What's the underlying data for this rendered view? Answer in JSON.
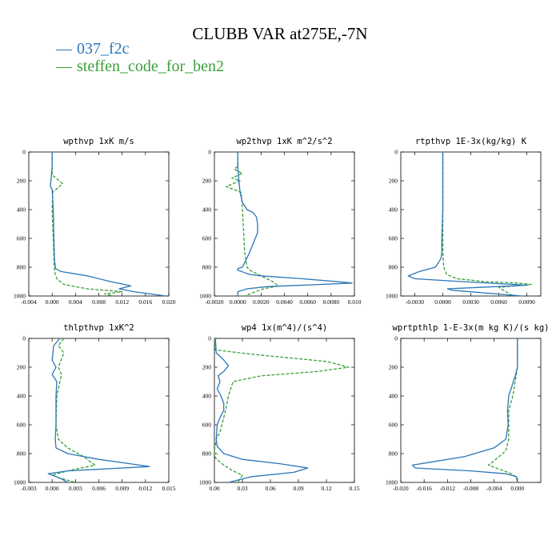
{
  "figure": {
    "title": "CLUBB VAR at275E,-7N",
    "legend": [
      {
        "label": "037_f2c",
        "color": "#2a76b8",
        "dash": "solid"
      },
      {
        "label": "steffen_code_for_ben2",
        "color": "#3a9e3a",
        "dash": "dashed"
      }
    ]
  },
  "chart_data": [
    {
      "type": "line",
      "title": "wpthvp  1xK m/s",
      "xlim": [
        -0.004,
        0.02
      ],
      "ylim": [
        0,
        1000
      ],
      "y_inverted": true,
      "xticks": [
        "-0.004",
        "0.000",
        "0.004",
        "0.008",
        "0.012",
        "0.016",
        "0.020"
      ],
      "yticks": [
        "0",
        "200",
        "400",
        "600",
        "800",
        "1000"
      ],
      "series": [
        {
          "name": "037_f2c",
          "color": "#2a76b8",
          "dash": "solid",
          "x": [
            0.0,
            0.0,
            -0.0001,
            -0.0003,
            0.0,
            0.0002,
            0.0003,
            0.0004,
            0.0006,
            0.0015,
            0.006,
            0.01,
            0.0135,
            0.0115,
            0.014,
            0.0195
          ],
          "y": [
            0,
            100,
            150,
            240,
            260,
            400,
            600,
            750,
            810,
            830,
            860,
            900,
            930,
            950,
            970,
            1000
          ]
        },
        {
          "name": "steffen_code_for_ben2",
          "color": "#3a9e3a",
          "dash": "dashed",
          "x": [
            0.0,
            0.0,
            0.0018,
            0.0001,
            0.0,
            0.0002,
            0.0003,
            0.0004,
            0.0008,
            0.002,
            0.006,
            0.012,
            0.009,
            0.0105
          ],
          "y": [
            0,
            160,
            220,
            280,
            400,
            600,
            750,
            830,
            880,
            920,
            950,
            970,
            985,
            1000
          ]
        }
      ]
    },
    {
      "type": "line",
      "title": "wp2thvp  1xK m^2/s^2",
      "xlim": [
        -0.002,
        0.01
      ],
      "ylim": [
        0,
        1000
      ],
      "y_inverted": true,
      "xticks": [
        "-0.0020",
        "0.0000",
        "0.0020",
        "0.0040",
        "0.0060",
        "0.0080",
        "0.010"
      ],
      "yticks": [
        "0",
        "200",
        "400",
        "600",
        "800",
        "1000"
      ],
      "series": [
        {
          "name": "037_f2c",
          "color": "#2a76b8",
          "dash": "solid",
          "x": [
            0.0,
            0.0,
            0.0001,
            0.0002,
            0.0004,
            0.0008,
            0.0013,
            0.0016,
            0.0017,
            0.0017,
            0.0014,
            0.001,
            0.0004,
            0.0,
            0.0,
            0.0005,
            0.001,
            0.002,
            0.0055,
            0.0085,
            0.0098,
            0.007,
            0.0025,
            0.0008,
            0.0,
            0.0
          ],
          "y": [
            0,
            100,
            200,
            280,
            350,
            400,
            420,
            450,
            500,
            560,
            620,
            700,
            800,
            810,
            820,
            835,
            850,
            860,
            880,
            900,
            910,
            920,
            935,
            950,
            970,
            1000
          ]
        },
        {
          "name": "steffen_code_for_ben2",
          "color": "#3a9e3a",
          "dash": "dashed",
          "x": [
            0.0,
            0.0,
            -0.0003,
            0.0004,
            -0.0005,
            0.0002,
            -0.001,
            0.0003,
            0.0004,
            0.0005,
            0.0006,
            0.0008,
            0.001,
            0.002,
            0.003,
            0.0035,
            0.0022,
            0.0012,
            0.0006
          ],
          "y": [
            0,
            100,
            120,
            150,
            180,
            200,
            240,
            280,
            400,
            550,
            700,
            800,
            820,
            860,
            900,
            930,
            950,
            980,
            1000
          ]
        }
      ]
    },
    {
      "type": "line",
      "title": "rtpthvp  1E-3x(kg/kg) K",
      "xlim": [
        -0.0045,
        0.0105
      ],
      "ylim": [
        0,
        1000
      ],
      "y_inverted": true,
      "xticks": [
        "-0.0030",
        "0.0000",
        "0.0030",
        "0.0060",
        "0.0090"
      ],
      "yticks": [
        "0",
        "200",
        "400",
        "600",
        "800",
        "1000"
      ],
      "series": [
        {
          "name": "037_f2c",
          "color": "#2a76b8",
          "dash": "solid",
          "x": [
            0.0,
            0.0,
            0.0,
            -0.0001,
            -0.0001,
            -0.0002,
            -0.0008,
            -0.0025,
            -0.0037,
            -0.003,
            0.002,
            0.009,
            0.004,
            0.0005,
            0.001,
            0.0085
          ],
          "y": [
            0,
            200,
            400,
            600,
            700,
            740,
            800,
            830,
            860,
            880,
            900,
            925,
            940,
            950,
            960,
            1000
          ]
        },
        {
          "name": "steffen_code_for_ben2",
          "color": "#3a9e3a",
          "dash": "dashed",
          "x": [
            0.0,
            0.0,
            0.0,
            0.0,
            0.0001,
            0.0004,
            0.0015,
            0.0045,
            0.008,
            0.0095,
            0.006,
            0.0075
          ],
          "y": [
            0,
            200,
            400,
            700,
            800,
            850,
            880,
            900,
            910,
            920,
            940,
            1000
          ]
        }
      ]
    },
    {
      "type": "line",
      "title": "thlpthvp  1xK^2",
      "xlim": [
        -0.003,
        0.015
      ],
      "ylim": [
        0,
        1000
      ],
      "y_inverted": true,
      "xticks": [
        "-0.003",
        "0.000",
        "0.003",
        "0.006",
        "0.009",
        "0.012",
        "0.015"
      ],
      "yticks": [
        "0",
        "200",
        "400",
        "600",
        "800",
        "1000"
      ],
      "series": [
        {
          "name": "037_f2c",
          "color": "#2a76b8",
          "dash": "solid",
          "x": [
            0.001,
            0.0002,
            0.0,
            0.0005,
            0.0,
            0.0006,
            0.0005,
            0.0005,
            0.0004,
            0.0005,
            0.002,
            0.006,
            0.01,
            0.0125,
            0.002,
            -0.0005,
            0.001,
            0.002
          ],
          "y": [
            0,
            50,
            150,
            200,
            250,
            300,
            400,
            600,
            700,
            760,
            800,
            840,
            870,
            890,
            920,
            940,
            970,
            1000
          ]
        },
        {
          "name": "steffen_code_for_ben2",
          "color": "#3a9e3a",
          "dash": "dashed",
          "x": [
            0.0015,
            0.0008,
            0.0015,
            0.0008,
            0.0012,
            0.001,
            0.0006,
            0.0005,
            0.0008,
            0.002,
            0.004,
            0.0055,
            0.002,
            0.0,
            0.001,
            0.003
          ],
          "y": [
            0,
            50,
            100,
            200,
            250,
            300,
            400,
            600,
            700,
            760,
            820,
            880,
            920,
            950,
            970,
            1000
          ]
        }
      ]
    },
    {
      "type": "line",
      "title": "wp4  1x(m^4)/(s^4)",
      "xlim": [
        0.0,
        0.15
      ],
      "ylim": [
        0,
        1000
      ],
      "y_inverted": true,
      "xticks": [
        "0.00",
        "0.03",
        "0.06",
        "0.09",
        "0.12",
        "0.15"
      ],
      "yticks": [
        "0",
        "200",
        "400",
        "600",
        "800",
        "1000"
      ],
      "series": [
        {
          "name": "037_f2c",
          "color": "#2a76b8",
          "dash": "solid",
          "x": [
            0.001,
            0.002,
            0.01,
            0.015,
            0.01,
            0.004,
            0.006,
            0.003,
            0.007,
            0.01,
            0.01,
            0.006,
            0.003,
            0.002,
            0.003,
            0.01,
            0.03,
            0.07,
            0.1,
            0.085,
            0.04,
            0.015
          ],
          "y": [
            0,
            100,
            150,
            190,
            230,
            260,
            300,
            350,
            400,
            450,
            500,
            550,
            600,
            700,
            750,
            800,
            840,
            870,
            900,
            930,
            960,
            1000
          ]
        },
        {
          "name": "steffen_code_for_ben2",
          "color": "#3a9e3a",
          "dash": "dashed",
          "x": [
            0.0,
            0.001,
            0.04,
            0.12,
            0.144,
            0.11,
            0.05,
            0.02,
            0.015,
            0.012,
            0.01,
            0.006,
            0.002,
            0.0,
            0.001,
            0.01,
            0.02,
            0.03,
            0.025
          ],
          "y": [
            0,
            80,
            110,
            160,
            200,
            230,
            260,
            300,
            400,
            500,
            550,
            650,
            700,
            780,
            830,
            880,
            920,
            950,
            1000
          ]
        }
      ]
    },
    {
      "type": "line",
      "title": "wprtpthlp  1-E-3x(m kg K)/(s kg)",
      "xlim": [
        -0.02,
        0.004
      ],
      "ylim": [
        0,
        1000
      ],
      "y_inverted": true,
      "xticks": [
        "-0.020",
        "-0.016",
        "-0.012",
        "-0.008",
        "-0.004",
        "0.000"
      ],
      "yticks": [
        "0",
        "200",
        "400",
        "600",
        "800",
        "1000"
      ],
      "series": [
        {
          "name": "037_f2c",
          "color": "#2a76b8",
          "dash": "solid",
          "x": [
            0.0,
            0.0,
            -0.0003,
            -0.0015,
            -0.0017,
            -0.0016,
            -0.002,
            -0.004,
            -0.009,
            -0.015,
            -0.018,
            -0.0175,
            -0.008,
            -0.002,
            -0.0002,
            0.0
          ],
          "y": [
            0,
            200,
            250,
            400,
            500,
            600,
            700,
            760,
            820,
            860,
            880,
            900,
            920,
            940,
            960,
            1000
          ]
        },
        {
          "name": "steffen_code_for_ben2",
          "color": "#3a9e3a",
          "dash": "dashed",
          "x": [
            0.0,
            0.0,
            -0.0002,
            -0.0008,
            -0.0015,
            -0.0015,
            -0.002,
            -0.004,
            -0.005,
            -0.003,
            -0.001,
            0.0,
            0.0
          ],
          "y": [
            0,
            200,
            250,
            400,
            500,
            700,
            780,
            850,
            880,
            910,
            940,
            970,
            1000
          ]
        }
      ]
    }
  ]
}
